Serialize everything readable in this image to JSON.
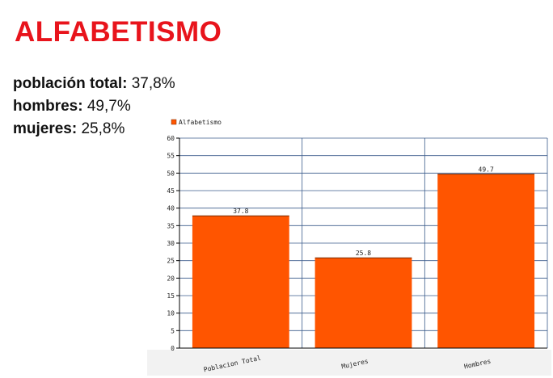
{
  "title": "ALFABETISMO",
  "stats": [
    {
      "label": "población total:",
      "value": "37,8%"
    },
    {
      "label": "hombres:",
      "value": "49,7%"
    },
    {
      "label": "mujeres:",
      "value": "25,8%"
    }
  ],
  "chart_data": {
    "type": "bar",
    "categories": [
      "Poblacion Total",
      "Mujeres",
      "Hombres"
    ],
    "series": [
      {
        "name": "Alfabetismo",
        "values": [
          37.8,
          25.8,
          49.7
        ]
      }
    ],
    "data_labels": [
      "37.8",
      "25.8",
      "49.7"
    ],
    "ylim": [
      0,
      60
    ],
    "yticks": [
      0,
      5,
      10,
      15,
      20,
      25,
      30,
      35,
      40,
      45,
      50,
      55,
      60
    ],
    "grid": true,
    "legend": "top-left",
    "colors": {
      "bar": "#ff5500",
      "grid": "#3b5c8c",
      "axis": "#000000"
    }
  }
}
